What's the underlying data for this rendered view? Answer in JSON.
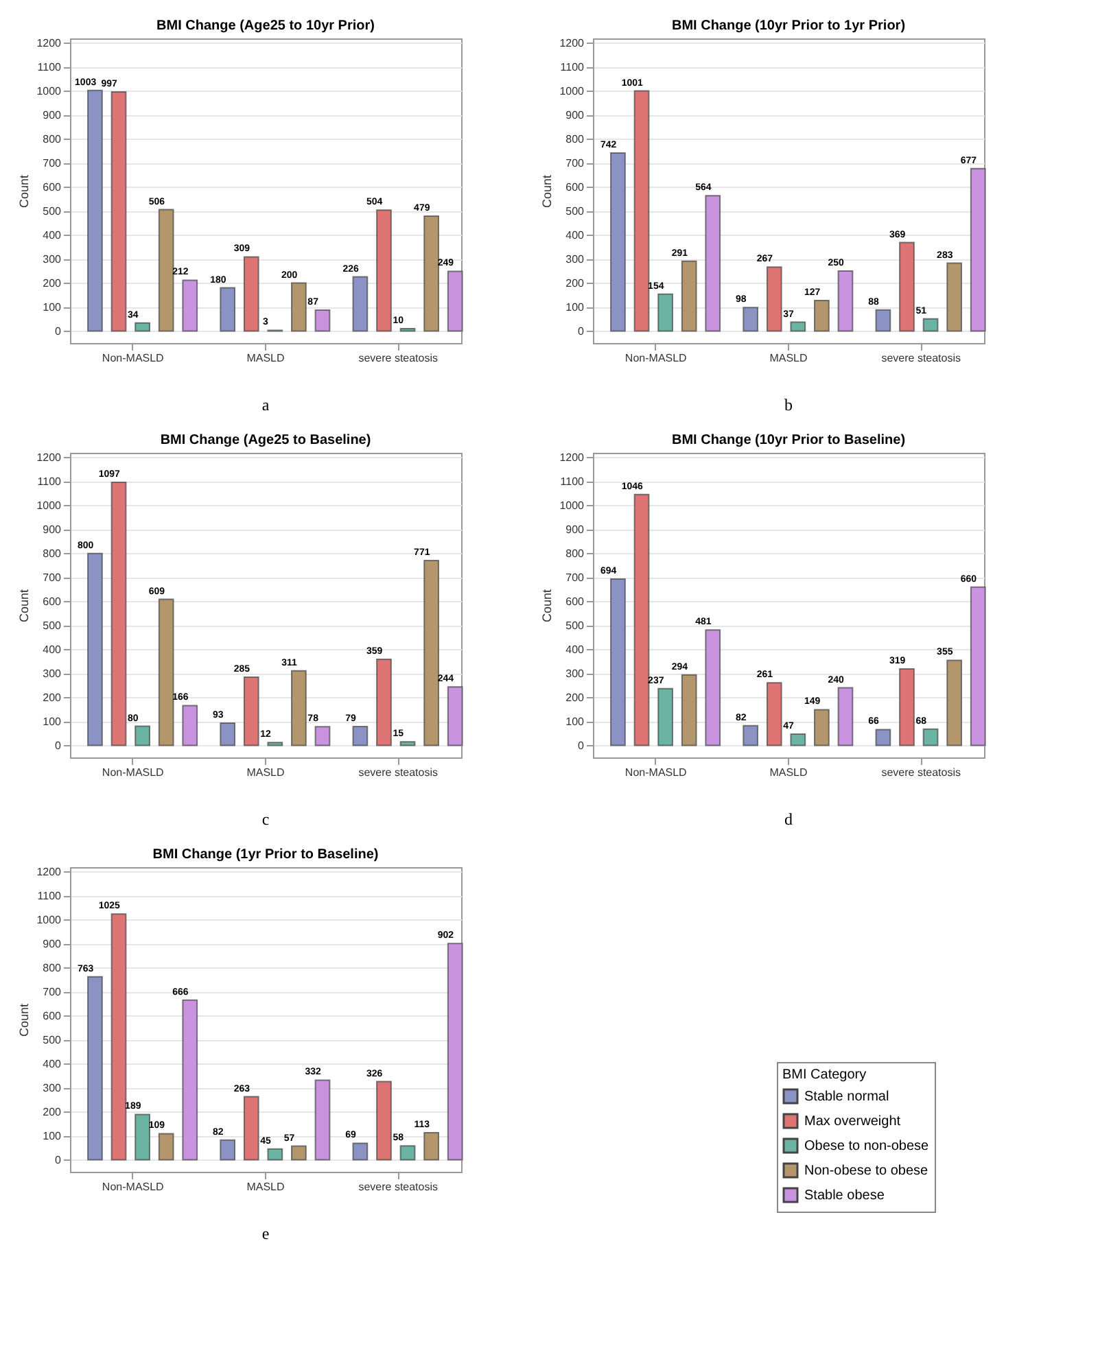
{
  "chart_data": [
    {
      "type": "bar",
      "title": "BMI Change (Age25 to 10yr Prior)",
      "ylabel": "Count",
      "categories": [
        "Non-MASLD",
        "MASLD",
        "severe steatosis"
      ],
      "series": [
        {
          "color": "#8a93c4",
          "values": [
            1003,
            180,
            226
          ]
        },
        {
          "color": "#de7473",
          "values": [
            997,
            309,
            504
          ]
        },
        {
          "color": "#6bb3a3",
          "values": [
            34,
            3,
            10
          ]
        },
        {
          "color": "#b3966c",
          "values": [
            506,
            200,
            479
          ]
        },
        {
          "color": "#c993e0",
          "values": [
            212,
            87,
            249
          ]
        }
      ],
      "ylim": [
        -50,
        1220
      ],
      "yticks": [
        0,
        100,
        200,
        300,
        400,
        500,
        600,
        700,
        800,
        900,
        1000,
        1100,
        1200
      ],
      "grid": "y",
      "data_labels": true,
      "annotations": [
        "a"
      ]
    },
    {
      "type": "bar",
      "title": "BMI Change (10yr Prior to 1yr Prior)",
      "ylabel": "Count",
      "categories": [
        "Non-MASLD",
        "MASLD",
        "severe steatosis"
      ],
      "series": [
        {
          "color": "#8a93c4",
          "values": [
            742,
            98,
            88
          ]
        },
        {
          "color": "#de7473",
          "values": [
            1001,
            267,
            369
          ]
        },
        {
          "color": "#6bb3a3",
          "values": [
            154,
            37,
            51
          ]
        },
        {
          "color": "#b3966c",
          "values": [
            291,
            127,
            283
          ]
        },
        {
          "color": "#c993e0",
          "values": [
            564,
            250,
            677
          ]
        }
      ],
      "ylim": [
        -50,
        1220
      ],
      "yticks": [
        0,
        100,
        200,
        300,
        400,
        500,
        600,
        700,
        800,
        900,
        1000,
        1100,
        1200
      ],
      "grid": "y",
      "data_labels": true,
      "annotations": [
        "b"
      ]
    },
    {
      "type": "bar",
      "title": "BMI Change (Age25 to Baseline)",
      "ylabel": "Count",
      "categories": [
        "Non-MASLD",
        "MASLD",
        "severe steatosis"
      ],
      "series": [
        {
          "color": "#8a93c4",
          "values": [
            800,
            93,
            79
          ]
        },
        {
          "color": "#de7473",
          "values": [
            1097,
            285,
            359
          ]
        },
        {
          "color": "#6bb3a3",
          "values": [
            80,
            12,
            15
          ]
        },
        {
          "color": "#b3966c",
          "values": [
            609,
            311,
            771
          ]
        },
        {
          "color": "#c993e0",
          "values": [
            166,
            78,
            244
          ]
        }
      ],
      "ylim": [
        -50,
        1220
      ],
      "yticks": [
        0,
        100,
        200,
        300,
        400,
        500,
        600,
        700,
        800,
        900,
        1000,
        1100,
        1200
      ],
      "grid": "y",
      "data_labels": true,
      "annotations": [
        "c"
      ]
    },
    {
      "type": "bar",
      "title": "BMI Change (10yr Prior to Baseline)",
      "ylabel": "Count",
      "categories": [
        "Non-MASLD",
        "MASLD",
        "severe steatosis"
      ],
      "series": [
        {
          "color": "#8a93c4",
          "values": [
            694,
            82,
            66
          ]
        },
        {
          "color": "#de7473",
          "values": [
            1046,
            261,
            319
          ]
        },
        {
          "color": "#6bb3a3",
          "values": [
            237,
            47,
            68
          ]
        },
        {
          "color": "#b3966c",
          "values": [
            294,
            149,
            355
          ]
        },
        {
          "color": "#c993e0",
          "values": [
            481,
            240,
            660
          ]
        }
      ],
      "ylim": [
        -50,
        1220
      ],
      "yticks": [
        0,
        100,
        200,
        300,
        400,
        500,
        600,
        700,
        800,
        900,
        1000,
        1100,
        1200
      ],
      "grid": "y",
      "data_labels": true,
      "annotations": [
        "d"
      ]
    },
    {
      "type": "bar",
      "title": "BMI Change (1yr Prior to Baseline)",
      "ylabel": "Count",
      "categories": [
        "Non-MASLD",
        "MASLD",
        "severe steatosis"
      ],
      "series": [
        {
          "name": "Stable normal",
          "color": "#8a93c4",
          "values": [
            763,
            82,
            69
          ]
        },
        {
          "name": "Max overweight",
          "color": "#de7473",
          "values": [
            1025,
            263,
            326
          ]
        },
        {
          "name": "Obese to non-obese",
          "color": "#6bb3a3",
          "values": [
            189,
            45,
            58
          ]
        },
        {
          "name": "Non-obese to obese",
          "color": "#b3966c",
          "values": [
            109,
            57,
            113
          ]
        },
        {
          "name": "Stable obese",
          "color": "#c993e0",
          "values": [
            666,
            332,
            902
          ]
        }
      ],
      "ylim": [
        -50,
        1220
      ],
      "yticks": [
        0,
        100,
        200,
        300,
        400,
        500,
        600,
        700,
        800,
        900,
        1000,
        1100,
        1200
      ],
      "grid": "y",
      "data_labels": true,
      "legend": "bottom right",
      "legend_title": "BMI Category",
      "annotations": [
        "e"
      ]
    }
  ]
}
